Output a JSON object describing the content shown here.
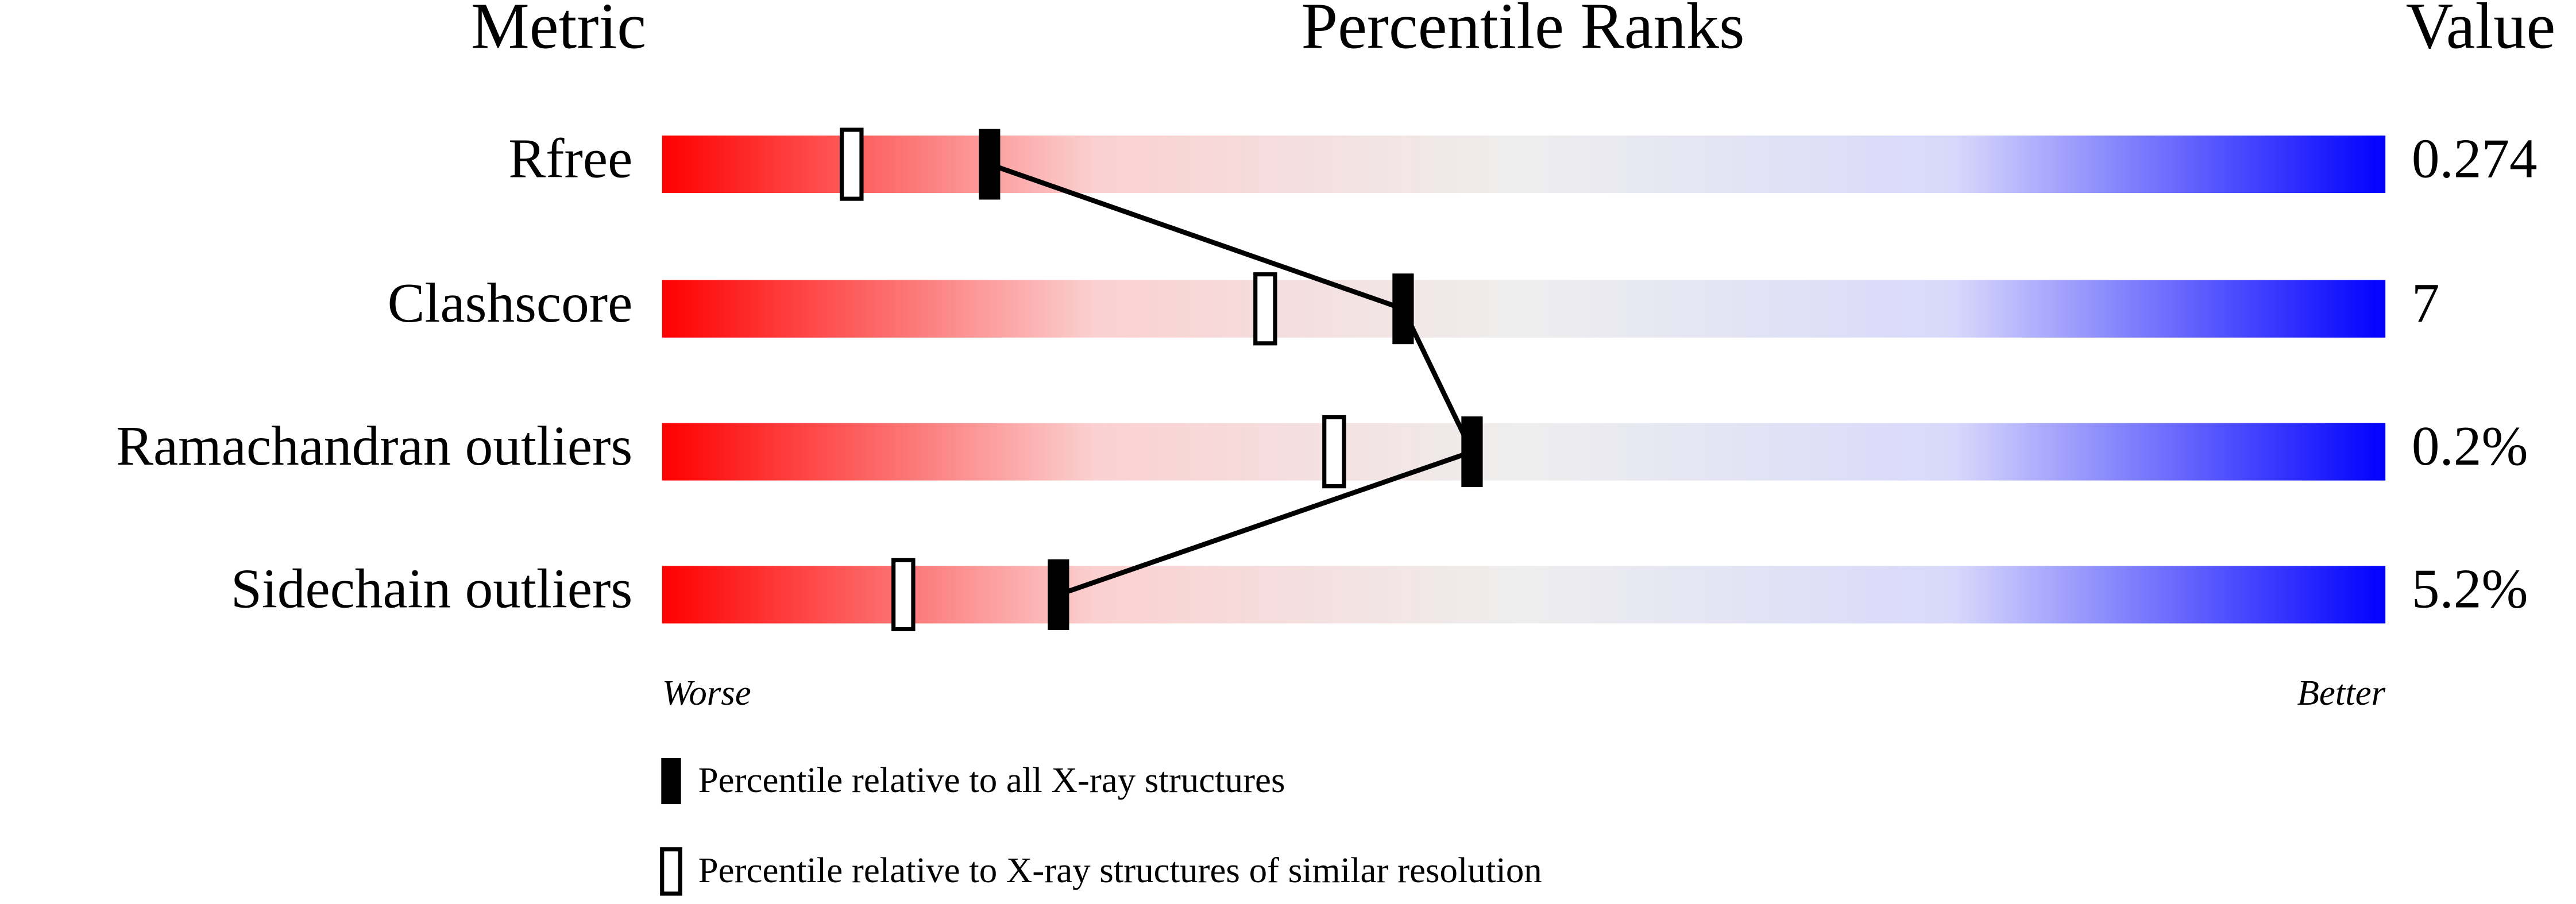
{
  "chart_data": {
    "type": "percentile",
    "column_headers": [
      "Metric",
      "Percentile Ranks",
      "Value"
    ],
    "categories": [
      "Rfree",
      "Clashscore",
      "Ramachandran outliers",
      "Sidechain outliers"
    ],
    "metric_values": [
      "0.274",
      "7",
      "0.2%",
      "5.2%"
    ],
    "series": [
      {
        "name": "Percentile relative to all X-ray structures",
        "color": "#000000",
        "values": [
          19,
          43,
          47,
          23
        ]
      },
      {
        "name": "Percentile relative to X-ray structures of similar resolution",
        "color": "#ffffff",
        "values": [
          11,
          35,
          39,
          14
        ]
      }
    ],
    "xlim": [
      0,
      100
    ],
    "axis_labels": [
      "Worse",
      "Better"
    ],
    "scale_colors": [
      "#ff0000",
      "#fbd0d0",
      "#eeeeee",
      "#d8d8fb",
      "#0000ff"
    ]
  }
}
